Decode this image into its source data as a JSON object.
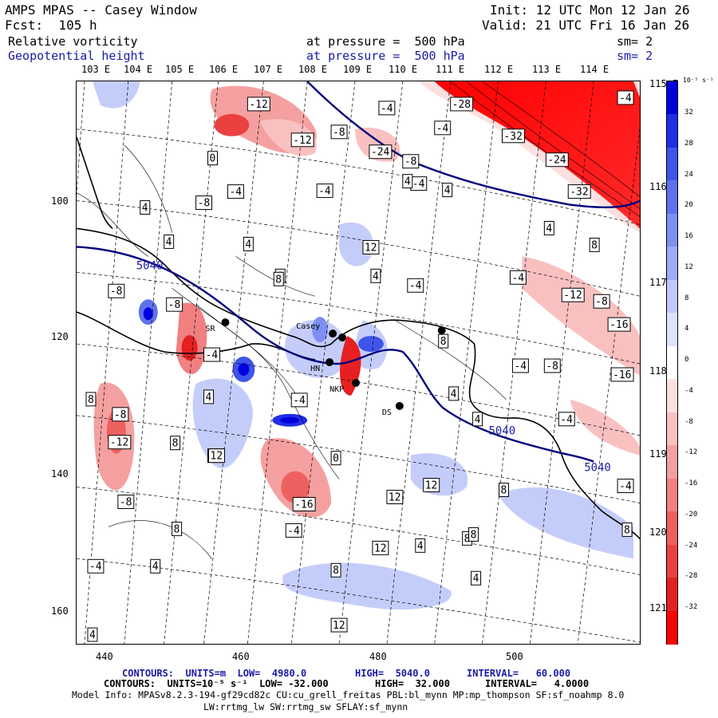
{
  "header": {
    "title": "AMPS MPAS -- Casey Window",
    "forecast": "Fcst:  105 h",
    "init": "Init: 12 UTC Mon 12 Jan 26",
    "valid": "Valid: 21 UTC Fri 16 Jan 26",
    "field1_name": "Relative vorticity",
    "field1_level": "at pressure =  500 hPa",
    "field1_sm": "sm= 2",
    "field2_name": "Geopotential height",
    "field2_level": "at pressure =  500 hPa",
    "field2_sm": "sm= 2"
  },
  "longitudes_top": [
    "103 E",
    "104 E",
    "105 E",
    "106 E",
    "107 E",
    "108 E",
    "109 E",
    "110 E",
    "111 E",
    "112 E",
    "113 E",
    "114 E"
  ],
  "longitudes_right": [
    "115 E",
    "116 E",
    "117 E",
    "118 E",
    "119 E",
    "120 E",
    "121 E"
  ],
  "y_axis_ticks": [
    "100",
    "120",
    "140",
    "160"
  ],
  "x_axis_ticks": [
    "440",
    "460",
    "480",
    "500"
  ],
  "colorbar": {
    "units": "10⁻⁵ s⁻¹",
    "labels": [
      "32",
      "28",
      "24",
      "20",
      "16",
      "12",
      "8",
      "4",
      "0",
      "-4",
      "-8",
      "-12",
      "-16",
      "-20",
      "-24",
      "-28",
      "-32"
    ],
    "colors": [
      "#0000dd",
      "#1f2fe6",
      "#3f55ea",
      "#5e72ee",
      "#7e8ff2",
      "#9eacf6",
      "#bec8fa",
      "#dde3fc",
      "#ffffff",
      "#fce0e0",
      "#f9c0c0",
      "#f5a0a0",
      "#f28080",
      "#ee6060",
      "#ea4040",
      "#e62020",
      "#ff0000"
    ]
  },
  "stations": [
    {
      "label": "SR"
    },
    {
      "label": "Casey"
    },
    {
      "label": "HN"
    },
    {
      "label": "NKP"
    },
    {
      "label": "DS"
    }
  ],
  "contour_labels": [
    "-12",
    "-28",
    "-32",
    "-24",
    "-4",
    "-12",
    "-8",
    "-24",
    "-8",
    "-4",
    "-4",
    "-4",
    "-32",
    "0",
    "-4",
    "-8",
    "-4",
    "4",
    "4",
    "-8",
    "4",
    "8",
    "4",
    "4",
    "4",
    "8",
    "12",
    "-4",
    "-4",
    "4",
    "-12",
    "-8",
    "-16",
    "-16",
    "8",
    "-8",
    "-4",
    "4",
    "-8",
    "-4",
    "8",
    "4",
    "8",
    "-4",
    "-4",
    "-8",
    "12",
    "-4",
    "8",
    "-12",
    "8",
    "12",
    "-16",
    "0",
    "8",
    "-8",
    "12",
    "12",
    "-4",
    "4",
    "8",
    "4",
    "8",
    "12",
    "4",
    "-4",
    "8",
    "4",
    "8",
    "12",
    "4"
  ],
  "height_contour_labels": [
    "5040",
    "5040",
    "5040"
  ],
  "footer": {
    "contours1_a": "CONTOURS:  UNITS=m  LOW=  4980.0",
    "contours1_b": "HIGH=  5040.0",
    "contours1_c": "INTERVAL=   60.000",
    "contours2_a": "CONTOURS:  UNITS=10⁻⁵ s⁻¹  LOW= -32.000",
    "contours2_b": "HIGH=  32.000",
    "contours2_c": "INTERVAL=   4.0000",
    "model_info": "Model Info: MPASv8.2.3-194-gf29cd82c CU:cu_grell_freitas PBL:bl_mynn MP:mp_thompson SF:sf_noahmp 8.0",
    "model_info2": "LW:rrtmg_lw SW:rrtmg_sw SFLAY:sf_mynn"
  }
}
